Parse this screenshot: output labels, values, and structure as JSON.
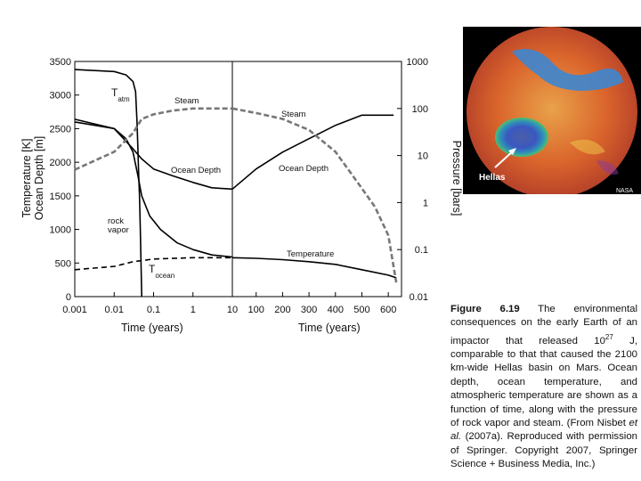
{
  "chart_data": {
    "type": "line",
    "panels": [
      {
        "name": "left",
        "x_scale": "log",
        "xlabel": "Time (years)",
        "xlim": [
          0.001,
          10
        ],
        "x_ticks": [
          "0.001",
          "0.01",
          "0.1",
          "1",
          "10"
        ]
      },
      {
        "name": "right",
        "x_scale": "linear",
        "xlabel": "Time (years)",
        "xlim": [
          10,
          650
        ],
        "x_ticks": [
          "100",
          "200",
          "300",
          "400",
          "500",
          "600"
        ]
      }
    ],
    "y_left": {
      "label_line1": "Temperature [K]",
      "label_line2": "Ocean Depth [m]",
      "ylim": [
        0,
        3500
      ],
      "ticks": [
        "0",
        "500",
        "1000",
        "1500",
        "2000",
        "2500",
        "3000",
        "3500"
      ]
    },
    "y_right": {
      "label": "Pressure [bars]",
      "scale": "log",
      "ylim": [
        0.01,
        1000
      ],
      "ticks": [
        "0.01",
        "0.1",
        "1",
        "10",
        "100",
        "1000"
      ]
    },
    "series": [
      {
        "name": "T_atm",
        "axis": "left",
        "style": "solid",
        "left": [
          [
            0.001,
            3380
          ],
          [
            0.01,
            3350
          ],
          [
            0.02,
            3300
          ],
          [
            0.03,
            3200
          ],
          [
            0.035,
            3050
          ],
          [
            0.038,
            2600
          ],
          [
            0.04,
            2200
          ],
          [
            0.042,
            1800
          ],
          [
            0.044,
            1500
          ],
          [
            0.046,
            1000
          ],
          [
            0.048,
            500
          ],
          [
            0.05,
            0
          ]
        ]
      },
      {
        "name": "Ocean Depth",
        "axis": "left",
        "style": "solid",
        "left": [
          [
            0.001,
            2640
          ],
          [
            0.01,
            2500
          ],
          [
            0.03,
            2200
          ],
          [
            0.05,
            2050
          ],
          [
            0.1,
            1900
          ],
          [
            0.3,
            1800
          ],
          [
            1,
            1700
          ],
          [
            3,
            1620
          ],
          [
            10,
            1600
          ]
        ],
        "right": [
          [
            10,
            1600
          ],
          [
            100,
            1900
          ],
          [
            200,
            2150
          ],
          [
            300,
            2350
          ],
          [
            400,
            2550
          ],
          [
            500,
            2700
          ],
          [
            570,
            2700
          ],
          [
            620,
            2700
          ]
        ]
      },
      {
        "name": "rock vapor",
        "axis": "left",
        "style": "solid",
        "left": [
          [
            0.001,
            2600
          ],
          [
            0.01,
            2500
          ],
          [
            0.02,
            2350
          ],
          [
            0.03,
            2150
          ],
          [
            0.04,
            1800
          ],
          [
            0.05,
            1500
          ],
          [
            0.08,
            1200
          ],
          [
            0.15,
            1000
          ],
          [
            0.4,
            800
          ],
          [
            1,
            700
          ],
          [
            3,
            620
          ],
          [
            10,
            590
          ]
        ]
      },
      {
        "name": "T_ocean",
        "axis": "left",
        "style": "dashed",
        "left": [
          [
            0.001,
            400
          ],
          [
            0.01,
            450
          ],
          [
            0.03,
            520
          ],
          [
            0.1,
            560
          ],
          [
            1,
            580
          ],
          [
            10,
            580
          ]
        ]
      },
      {
        "name": "Temperature",
        "axis": "left",
        "style": "solid",
        "right": [
          [
            10,
            580
          ],
          [
            100,
            570
          ],
          [
            200,
            550
          ],
          [
            300,
            520
          ],
          [
            400,
            480
          ],
          [
            500,
            400
          ],
          [
            600,
            320
          ],
          [
            630,
            280
          ]
        ]
      },
      {
        "name": "Steam",
        "axis": "right",
        "style": "dashed",
        "left": [
          [
            0.001,
            5
          ],
          [
            0.01,
            12
          ],
          [
            0.03,
            30
          ],
          [
            0.05,
            60
          ],
          [
            0.1,
            75
          ],
          [
            0.3,
            90
          ],
          [
            1,
            100
          ],
          [
            3,
            100
          ],
          [
            10,
            100
          ]
        ],
        "right": [
          [
            10,
            100
          ],
          [
            100,
            80
          ],
          [
            200,
            60
          ],
          [
            300,
            35
          ],
          [
            400,
            12
          ],
          [
            500,
            2
          ],
          [
            550,
            0.8
          ],
          [
            600,
            0.2
          ],
          [
            630,
            0.02
          ]
        ]
      }
    ],
    "annotations": {
      "t_atm": {
        "main": "T",
        "sub": "atm"
      },
      "steam_left": "Steam",
      "steam_right": "Steam",
      "ocean_depth_left": "Ocean Depth",
      "ocean_depth_right": "Ocean Depth",
      "rock_vapor_1": "rock",
      "rock_vapor_2": "vapor",
      "temperature": "Temperature",
      "t_ocean": {
        "main": "T",
        "sub": "ocean"
      }
    },
    "grid": false,
    "legend": "none"
  },
  "image": {
    "label": "Hellas",
    "credit": "NASA"
  },
  "caption": {
    "fig": "Figure 6.19",
    "text_a": " The environmental consequences on the early Earth of an impactor that released 10",
    "sup": "27",
    "text_b": " J, comparable to that that caused the 2100 km-wide Hellas basin on Mars. Ocean depth, ocean temperature, and atmospheric temperature are shown as a function of time, along with the pressure of rock vapor and steam. (From Nisbet ",
    "etal": "et al.",
    "text_c": " (2007a). Reproduced with permission of Springer. Copyright 2007, Springer Science + Business Media, Inc.)"
  }
}
